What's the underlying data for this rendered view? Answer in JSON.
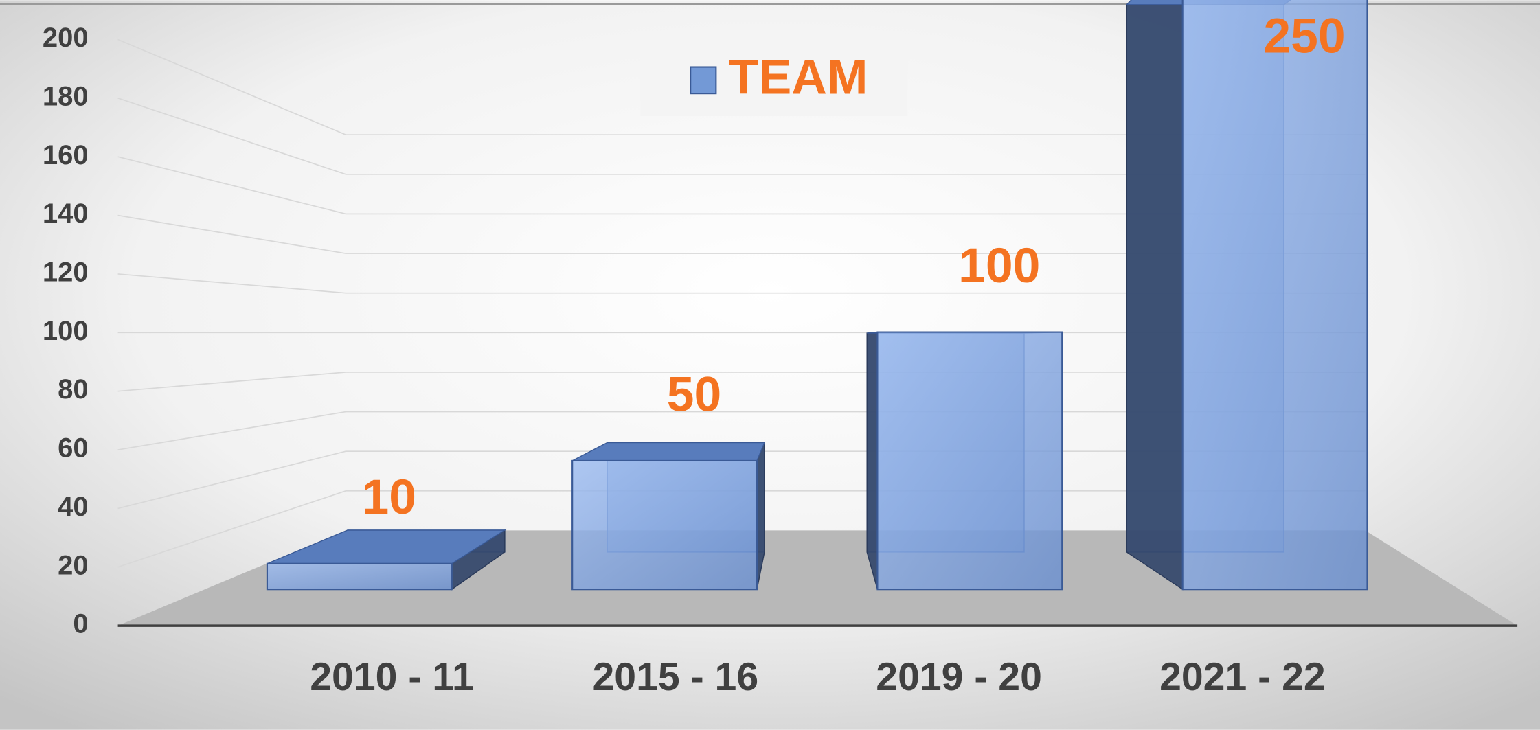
{
  "chart_data": {
    "type": "bar3d",
    "categories": [
      "2010 - 11",
      "2015 - 16",
      "2019 - 20",
      "2021 - 22"
    ],
    "series": [
      {
        "name": "TEAM",
        "color": "#7399d6",
        "values": [
          10,
          50,
          100,
          250
        ]
      }
    ],
    "ylim": [
      0,
      200
    ],
    "yticks": [
      0,
      20,
      40,
      60,
      80,
      100,
      120,
      140,
      160,
      180,
      200
    ],
    "grid": true,
    "legend": "top",
    "label_color": "#f47321"
  }
}
